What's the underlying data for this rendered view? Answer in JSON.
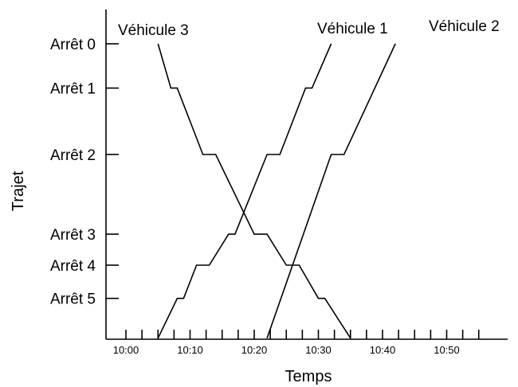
{
  "chart_data": {
    "type": "line",
    "title": "",
    "xlabel": "Temps",
    "ylabel": "Trajet",
    "x_ticks": [
      "10:00",
      "10:10",
      "10:20",
      "10:30",
      "10:40",
      "10:50"
    ],
    "x_minor_step_minutes": 2.5,
    "xlim": [
      "10:00",
      "10:56"
    ],
    "stops": [
      {
        "label": "Arrêt 0",
        "position": 0
      },
      {
        "label": "Arrêt 1",
        "position": 1
      },
      {
        "label": "Arrêt 2",
        "position": 2.5
      },
      {
        "label": "Arrêt 3",
        "position": 4.3
      },
      {
        "label": "Arrêt 4",
        "position": 5
      },
      {
        "label": "Arrêt 5",
        "position": 5.75
      }
    ],
    "origin_position": 6.65,
    "grid": false,
    "legend": "labels-at-line-ends",
    "line_color": "#000000",
    "series": [
      {
        "name": "Véhicule 1",
        "points": [
          [
            "10:05",
            6.65
          ],
          [
            "10:08",
            5.75
          ],
          [
            "10:09",
            5.75
          ],
          [
            "10:11",
            5.0
          ],
          [
            "10:13",
            5.0
          ],
          [
            "10:16",
            4.3
          ],
          [
            "10:17",
            4.3
          ],
          [
            "10:22",
            2.5
          ],
          [
            "10:24",
            2.5
          ],
          [
            "10:28",
            1.0
          ],
          [
            "10:29",
            1.0
          ],
          [
            "10:32",
            0.0
          ]
        ]
      },
      {
        "name": "Véhicule 2",
        "points": [
          [
            "10:22",
            6.65
          ],
          [
            "10:32",
            2.5
          ],
          [
            "10:34",
            2.5
          ],
          [
            "10:42",
            0.0
          ]
        ]
      },
      {
        "name": "Véhicule 3",
        "points": [
          [
            "10:05",
            0.0
          ],
          [
            "10:07",
            1.0
          ],
          [
            "10:08",
            1.0
          ],
          [
            "10:12",
            2.5
          ],
          [
            "10:14",
            2.5
          ],
          [
            "10:20",
            4.3
          ],
          [
            "10:22",
            4.3
          ],
          [
            "10:25",
            5.0
          ],
          [
            "10:27",
            5.0
          ],
          [
            "10:30",
            5.75
          ],
          [
            "10:31",
            5.75
          ],
          [
            "10:35",
            6.65
          ]
        ]
      }
    ]
  }
}
